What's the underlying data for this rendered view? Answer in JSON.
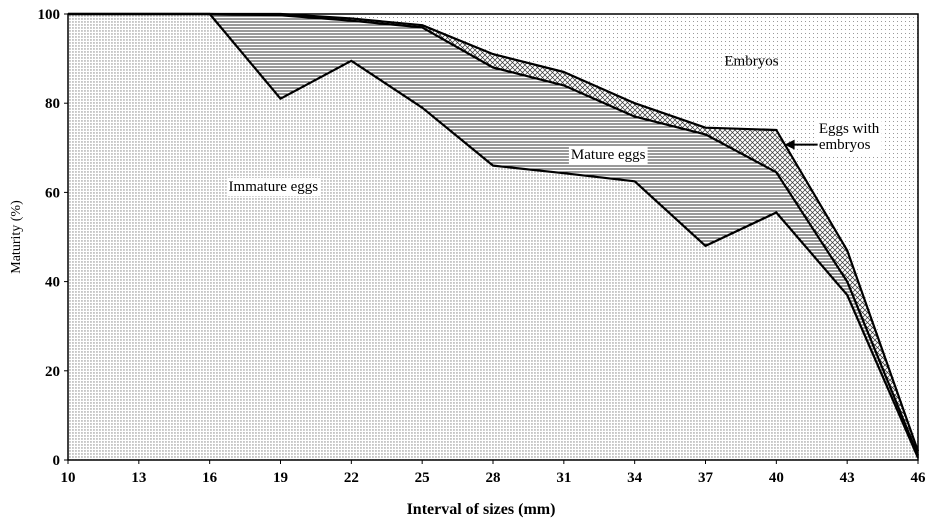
{
  "chart_data": {
    "type": "area",
    "xlabel": "Interval of sizes (mm)",
    "ylabel": "Maturity (%)",
    "xlim": [
      10,
      46
    ],
    "ylim": [
      0,
      100
    ],
    "x_ticks": [
      "10",
      "13",
      "16",
      "19",
      "22",
      "25",
      "28",
      "31",
      "34",
      "37",
      "40",
      "43",
      "46"
    ],
    "y_ticks": [
      "0",
      "20",
      "40",
      "60",
      "80",
      "100"
    ],
    "stacking": "cumulative",
    "x": [
      10,
      13,
      16,
      19,
      22,
      25,
      28,
      31,
      34,
      37,
      40,
      43,
      46
    ],
    "series": [
      {
        "name": "Immature eggs",
        "cumulative_top": [
          100,
          100,
          100,
          81,
          89.5,
          79,
          66,
          64.3,
          62.5,
          48,
          55.5,
          37,
          0.5
        ]
      },
      {
        "name": "Mature eggs",
        "cumulative_top": [
          100,
          100,
          100,
          99.7,
          98.5,
          97,
          88,
          84,
          77,
          73,
          64.5,
          40,
          1
        ]
      },
      {
        "name": "Eggs with embryos",
        "cumulative_top": [
          100,
          100,
          100,
          100,
          99,
          97.5,
          91,
          87,
          80,
          74.5,
          74,
          47,
          2
        ]
      },
      {
        "name": "Embryos",
        "cumulative_top": [
          100,
          100,
          100,
          100,
          100,
          100,
          100,
          100,
          100,
          100,
          100,
          100,
          100
        ]
      }
    ],
    "annotations": {
      "immature": "Immature eggs",
      "mature": "Mature eggs",
      "with_embryos": "Eggs with\nembryos",
      "embryos": "Embryos"
    },
    "grid": false,
    "legend": "none"
  }
}
